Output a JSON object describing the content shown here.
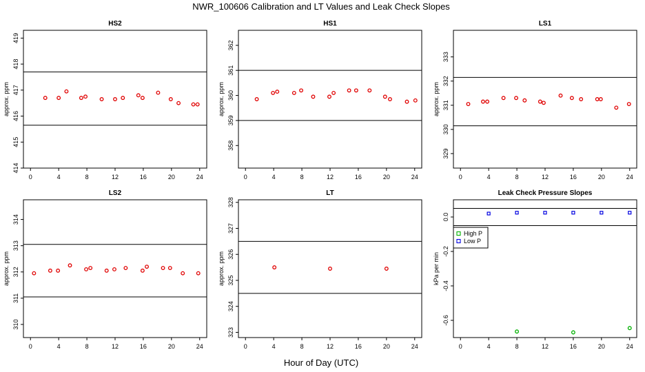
{
  "title": "NWR_100606  Calibration and LT Values and Leak Check Slopes",
  "xlabel": "Hour of Day (UTC)",
  "chart_data": [
    {
      "type": "scatter",
      "title": "HS2",
      "ylabel": "approx. ppm",
      "xlim": [
        -1,
        25
      ],
      "ylim": [
        414,
        419.3
      ],
      "xticks": [
        0,
        4,
        8,
        12,
        16,
        20,
        24
      ],
      "yticks": [
        414,
        415,
        416,
        417,
        418,
        419
      ],
      "hlines": [
        415.65,
        417.7
      ],
      "series": [
        {
          "color": "#e00000",
          "x": [
            2.1,
            4.0,
            5.1,
            7.2,
            7.8,
            10.1,
            12.0,
            13.1,
            15.3,
            15.9,
            18.1,
            19.9,
            21.0,
            23.1,
            23.7
          ],
          "y": [
            416.7,
            416.7,
            416.95,
            416.7,
            416.75,
            416.65,
            416.65,
            416.7,
            416.8,
            416.7,
            416.9,
            416.65,
            416.5,
            416.45,
            416.45
          ]
        }
      ]
    },
    {
      "type": "scatter",
      "title": "HS1",
      "ylabel": "approx. ppm",
      "xlim": [
        -1,
        25
      ],
      "ylim": [
        357.1,
        362.6
      ],
      "xticks": [
        0,
        4,
        8,
        12,
        16,
        20,
        24
      ],
      "yticks": [
        358,
        359,
        360,
        361,
        362
      ],
      "hlines": [
        359.0,
        361.0
      ],
      "series": [
        {
          "color": "#e00000",
          "x": [
            1.6,
            3.9,
            4.5,
            6.9,
            7.9,
            9.6,
            11.9,
            12.5,
            14.7,
            15.7,
            17.6,
            19.8,
            20.5,
            22.9,
            24.1
          ],
          "y": [
            359.85,
            360.1,
            360.15,
            360.1,
            360.2,
            359.95,
            359.95,
            360.1,
            360.2,
            360.2,
            360.2,
            359.95,
            359.85,
            359.75,
            359.8
          ]
        }
      ]
    },
    {
      "type": "scatter",
      "title": "LS1",
      "ylabel": "approx. ppm",
      "xlim": [
        -1,
        25
      ],
      "ylim": [
        328.4,
        334.1
      ],
      "xticks": [
        0,
        4,
        8,
        12,
        16,
        20,
        24
      ],
      "yticks": [
        329,
        330,
        331,
        332,
        333
      ],
      "hlines": [
        330.15,
        332.15
      ],
      "series": [
        {
          "color": "#e00000",
          "x": [
            1.1,
            3.2,
            3.8,
            6.1,
            7.9,
            9.1,
            11.3,
            11.8,
            14.2,
            15.8,
            17.1,
            19.4,
            19.9,
            22.1,
            23.9
          ],
          "y": [
            331.05,
            331.15,
            331.15,
            331.3,
            331.3,
            331.2,
            331.15,
            331.1,
            331.4,
            331.3,
            331.25,
            331.25,
            331.25,
            330.9,
            331.05
          ]
        }
      ]
    },
    {
      "type": "scatter",
      "title": "LS2",
      "ylabel": "approx. ppm",
      "xlim": [
        -1,
        25
      ],
      "ylim": [
        309.5,
        314.75
      ],
      "xticks": [
        0,
        4,
        8,
        12,
        16,
        20,
        24
      ],
      "yticks": [
        310,
        311,
        312,
        313,
        314
      ],
      "hlines": [
        311.05,
        313.05
      ],
      "series": [
        {
          "color": "#e00000",
          "x": [
            0.5,
            2.8,
            3.9,
            5.6,
            7.9,
            8.5,
            10.8,
            11.9,
            13.5,
            15.9,
            16.5,
            18.8,
            19.8,
            21.6,
            23.8
          ],
          "y": [
            311.95,
            312.05,
            312.05,
            312.25,
            312.1,
            312.15,
            312.05,
            312.1,
            312.15,
            312.05,
            312.2,
            312.15,
            312.15,
            311.95,
            311.95
          ]
        }
      ]
    },
    {
      "type": "scatter",
      "title": "LT",
      "ylabel": "approx. ppm",
      "xlim": [
        -1,
        25
      ],
      "ylim": [
        322.8,
        328.1
      ],
      "xticks": [
        0,
        4,
        8,
        12,
        16,
        20,
        24
      ],
      "yticks": [
        323,
        324,
        325,
        326,
        327,
        328
      ],
      "hlines": [
        324.5,
        326.5
      ],
      "series": [
        {
          "color": "#e00000",
          "x": [
            4.1,
            12.0,
            20.0
          ],
          "y": [
            325.5,
            325.45,
            325.45
          ]
        }
      ]
    },
    {
      "type": "scatter",
      "title": "Leak Check Pressure Slopes",
      "ylabel": "kPa per min",
      "xlim": [
        -1,
        25
      ],
      "ylim": [
        -0.7,
        0.1
      ],
      "xticks": [
        0,
        4,
        8,
        12,
        16,
        20,
        24
      ],
      "yticks": [
        0.0,
        -0.2,
        -0.4,
        -0.6
      ],
      "ytick_labels": [
        "0.0",
        "-0.2",
        "-0.4",
        "-0.6"
      ],
      "hlines": [
        0.05,
        -0.05
      ],
      "legend": {
        "placement": "top-left",
        "entries": [
          "High P",
          "Low P"
        ]
      },
      "series": [
        {
          "name": "High P",
          "color": "#00b000",
          "x": [
            8.0,
            16.0,
            24.0
          ],
          "y": [
            -0.665,
            -0.67,
            -0.645
          ]
        },
        {
          "name": "Low P",
          "color": "#0000e0",
          "x": [
            4.0,
            8.0,
            12.0,
            16.0,
            20.0,
            24.0
          ],
          "y": [
            0.02,
            0.025,
            0.025,
            0.025,
            0.025,
            0.025
          ]
        }
      ]
    }
  ]
}
